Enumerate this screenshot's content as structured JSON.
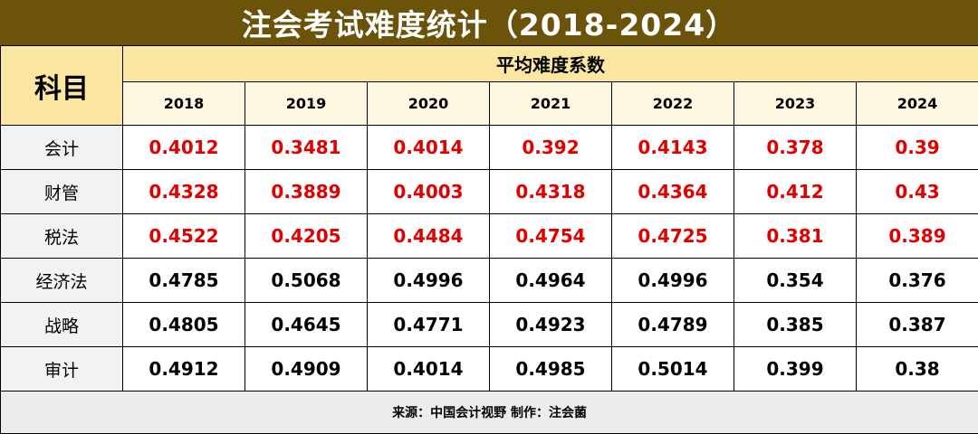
{
  "title": "注会考试难度统计（2018-2024）",
  "subject_header": "科目",
  "group_header": "平均难度系数",
  "footer": "来源：中国会计视野 制作：注会菌",
  "highlight_color": "#e00000",
  "normal_color": "#000000",
  "chart_data": {
    "type": "table",
    "title": "注会考试难度统计（2018-2024）",
    "row_header": "科目",
    "column_group": "平均难度系数",
    "columns": [
      "2018",
      "2019",
      "2020",
      "2021",
      "2022",
      "2023",
      "2024"
    ],
    "rows": [
      {
        "label": "会计",
        "highlight": true,
        "values": [
          "0.4012",
          "0.3481",
          "0.4014",
          "0.392",
          "0.4143",
          "0.378",
          "0.39"
        ]
      },
      {
        "label": "财管",
        "highlight": true,
        "values": [
          "0.4328",
          "0.3889",
          "0.4003",
          "0.4318",
          "0.4364",
          "0.412",
          "0.43"
        ]
      },
      {
        "label": "税法",
        "highlight": true,
        "values": [
          "0.4522",
          "0.4205",
          "0.4484",
          "0.4754",
          "0.4725",
          "0.381",
          "0.389"
        ]
      },
      {
        "label": "经济法",
        "highlight": false,
        "values": [
          "0.4785",
          "0.5068",
          "0.4996",
          "0.4964",
          "0.4996",
          "0.354",
          "0.376"
        ]
      },
      {
        "label": "战略",
        "highlight": false,
        "values": [
          "0.4805",
          "0.4645",
          "0.4771",
          "0.4923",
          "0.4789",
          "0.385",
          "0.387"
        ]
      },
      {
        "label": "审计",
        "highlight": false,
        "values": [
          "0.4912",
          "0.4909",
          "0.4014",
          "0.4985",
          "0.5014",
          "0.399",
          "0.38"
        ]
      }
    ]
  }
}
